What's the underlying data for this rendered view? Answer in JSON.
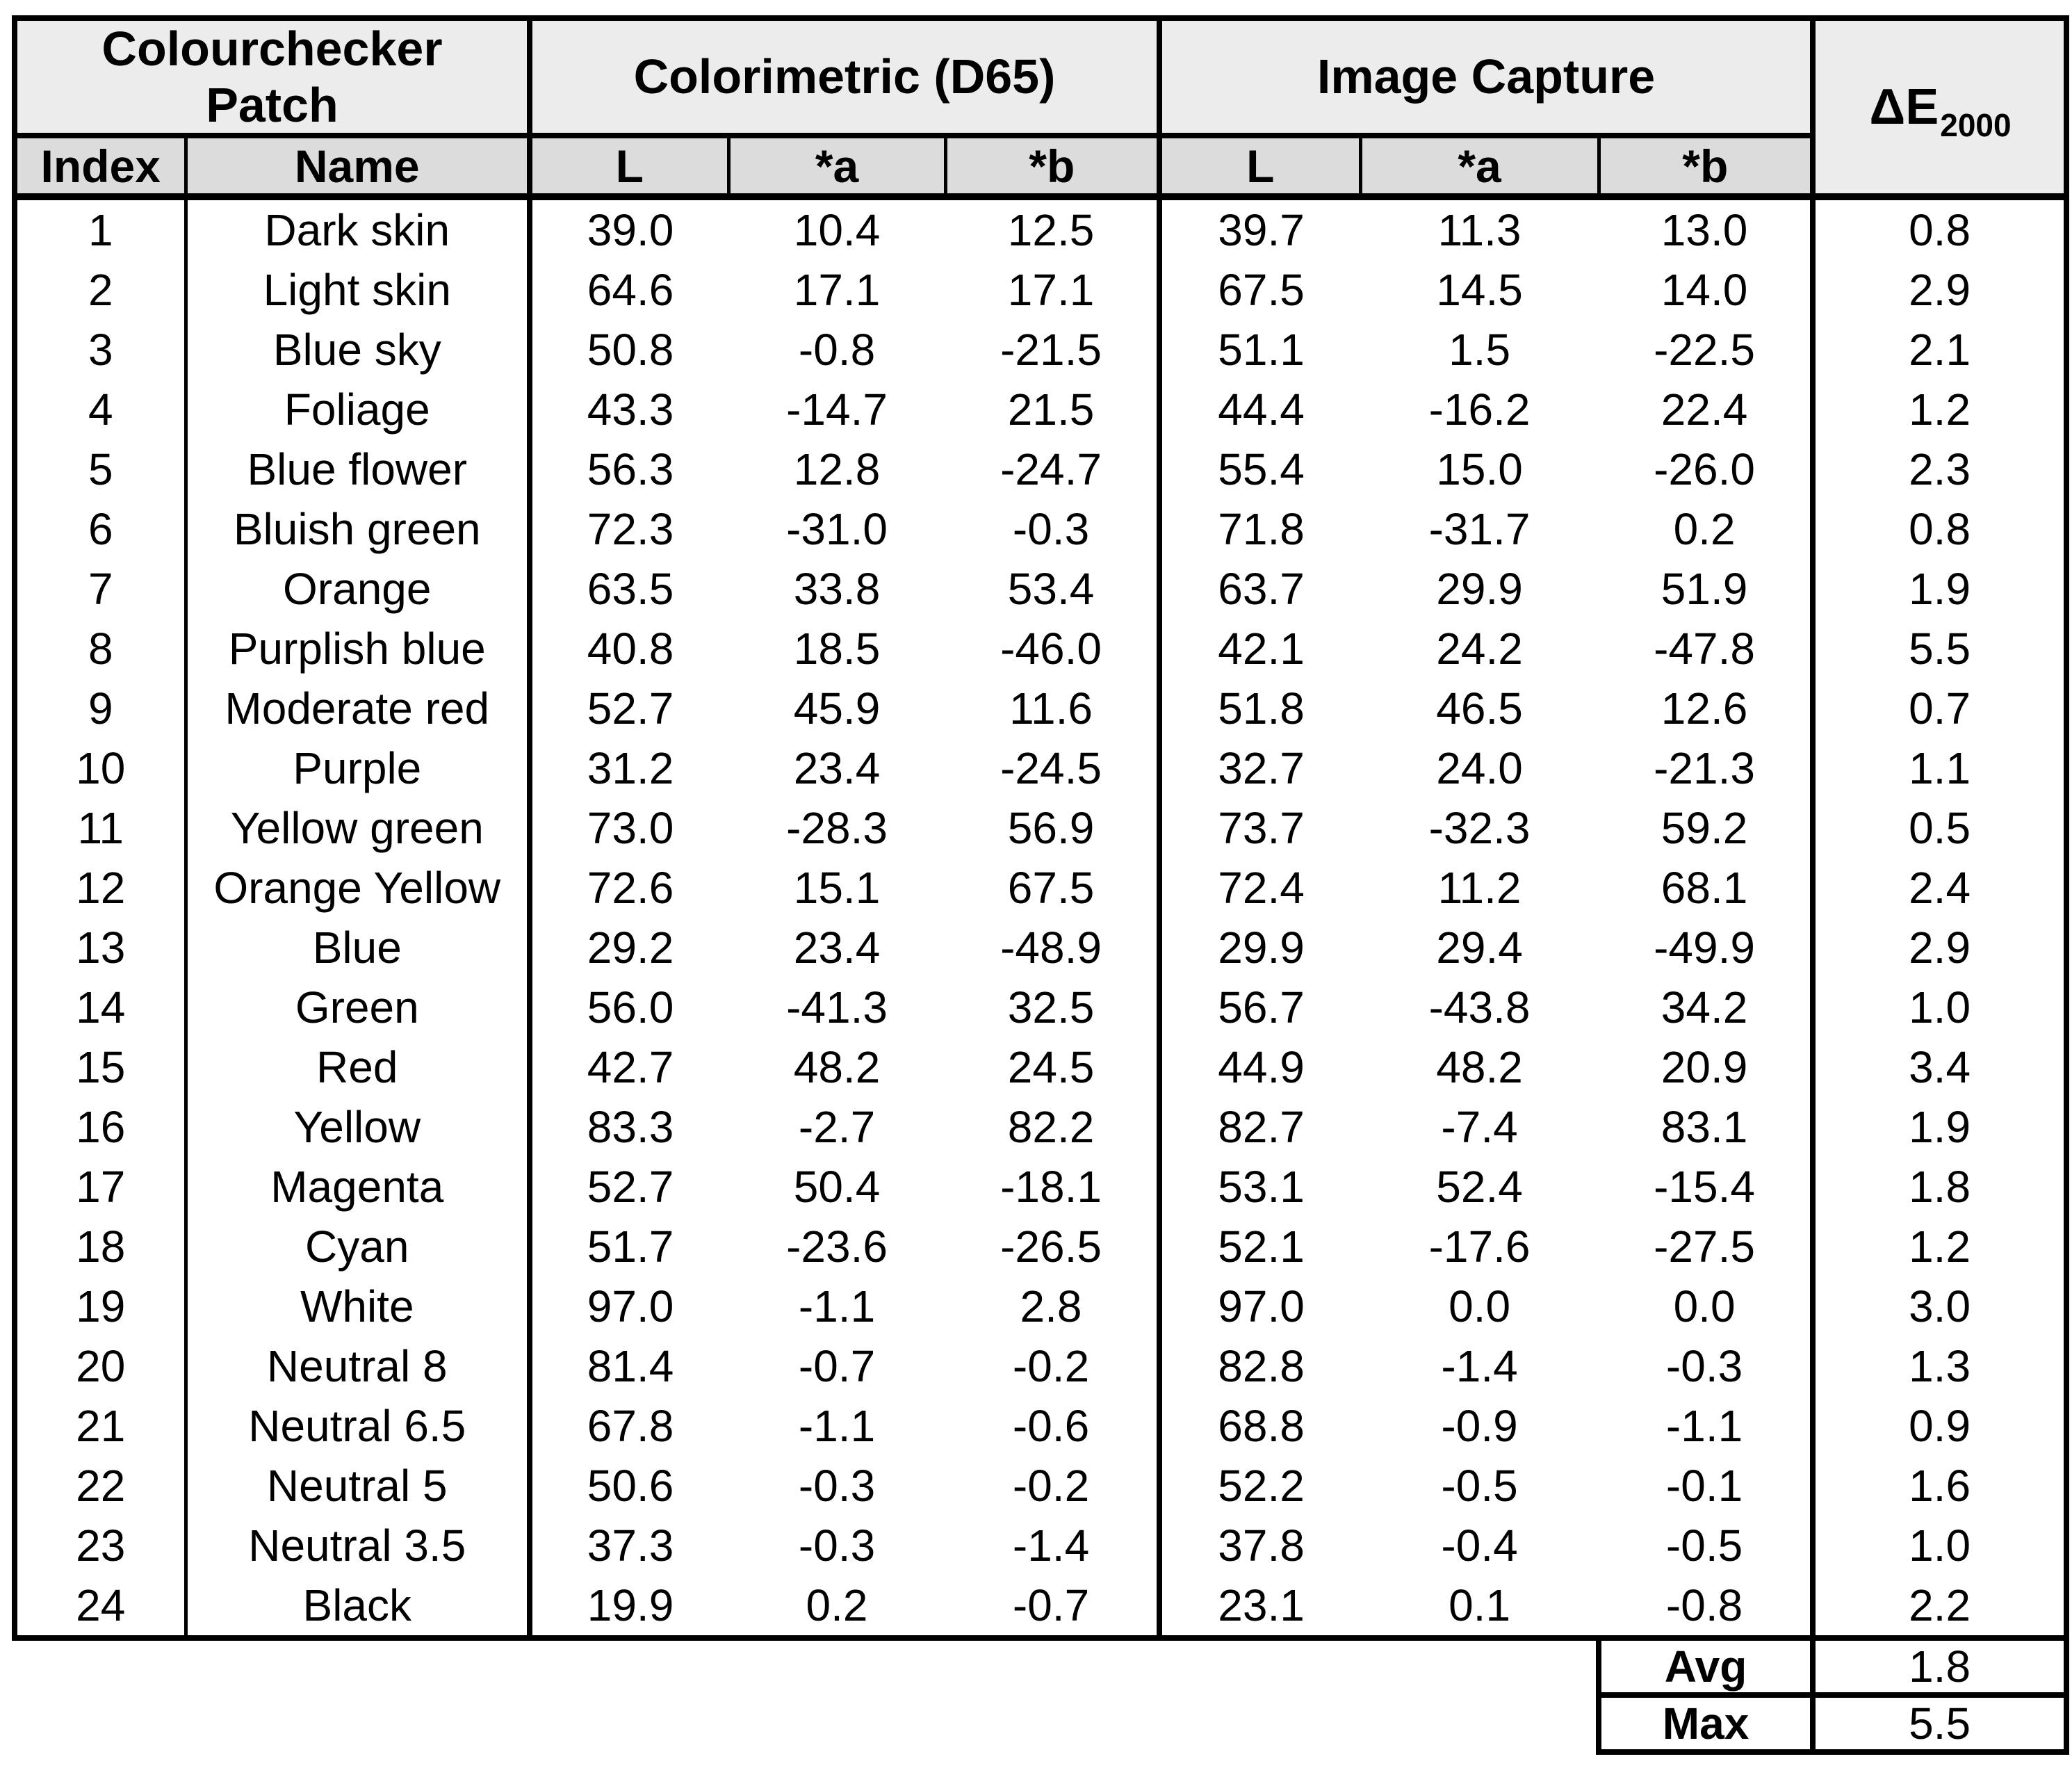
{
  "chart_data": {
    "type": "table",
    "group_headers": {
      "patch_line1": "Colourchecker",
      "patch_line2": "Patch",
      "colorimetric": "Colorimetric (D65)",
      "capture": "Image Capture",
      "delta_e_base": "ΔE",
      "delta_e_sub": "2000"
    },
    "columns": [
      "Index",
      "Name",
      "L",
      "*a",
      "*b",
      "L",
      "*a",
      "*b"
    ],
    "rows": [
      [
        "1",
        "Dark skin",
        "39.0",
        "10.4",
        "12.5",
        "39.7",
        "11.3",
        "13.0",
        "0.8"
      ],
      [
        "2",
        "Light skin",
        "64.6",
        "17.1",
        "17.1",
        "67.5",
        "14.5",
        "14.0",
        "2.9"
      ],
      [
        "3",
        "Blue sky",
        "50.8",
        "-0.8",
        "-21.5",
        "51.1",
        "1.5",
        "-22.5",
        "2.1"
      ],
      [
        "4",
        "Foliage",
        "43.3",
        "-14.7",
        "21.5",
        "44.4",
        "-16.2",
        "22.4",
        "1.2"
      ],
      [
        "5",
        "Blue flower",
        "56.3",
        "12.8",
        "-24.7",
        "55.4",
        "15.0",
        "-26.0",
        "2.3"
      ],
      [
        "6",
        "Bluish green",
        "72.3",
        "-31.0",
        "-0.3",
        "71.8",
        "-31.7",
        "0.2",
        "0.8"
      ],
      [
        "7",
        "Orange",
        "63.5",
        "33.8",
        "53.4",
        "63.7",
        "29.9",
        "51.9",
        "1.9"
      ],
      [
        "8",
        "Purplish blue",
        "40.8",
        "18.5",
        "-46.0",
        "42.1",
        "24.2",
        "-47.8",
        "5.5"
      ],
      [
        "9",
        "Moderate red",
        "52.7",
        "45.9",
        "11.6",
        "51.8",
        "46.5",
        "12.6",
        "0.7"
      ],
      [
        "10",
        "Purple",
        "31.2",
        "23.4",
        "-24.5",
        "32.7",
        "24.0",
        "-21.3",
        "1.1"
      ],
      [
        "11",
        "Yellow green",
        "73.0",
        "-28.3",
        "56.9",
        "73.7",
        "-32.3",
        "59.2",
        "0.5"
      ],
      [
        "12",
        "Orange Yellow",
        "72.6",
        "15.1",
        "67.5",
        "72.4",
        "11.2",
        "68.1",
        "2.4"
      ],
      [
        "13",
        "Blue",
        "29.2",
        "23.4",
        "-48.9",
        "29.9",
        "29.4",
        "-49.9",
        "2.9"
      ],
      [
        "14",
        "Green",
        "56.0",
        "-41.3",
        "32.5",
        "56.7",
        "-43.8",
        "34.2",
        "1.0"
      ],
      [
        "15",
        "Red",
        "42.7",
        "48.2",
        "24.5",
        "44.9",
        "48.2",
        "20.9",
        "3.4"
      ],
      [
        "16",
        "Yellow",
        "83.3",
        "-2.7",
        "82.2",
        "82.7",
        "-7.4",
        "83.1",
        "1.9"
      ],
      [
        "17",
        "Magenta",
        "52.7",
        "50.4",
        "-18.1",
        "53.1",
        "52.4",
        "-15.4",
        "1.8"
      ],
      [
        "18",
        "Cyan",
        "51.7",
        "-23.6",
        "-26.5",
        "52.1",
        "-17.6",
        "-27.5",
        "1.2"
      ],
      [
        "19",
        "White",
        "97.0",
        "-1.1",
        "2.8",
        "97.0",
        "0.0",
        "0.0",
        "3.0"
      ],
      [
        "20",
        "Neutral 8",
        "81.4",
        "-0.7",
        "-0.2",
        "82.8",
        "-1.4",
        "-0.3",
        "1.3"
      ],
      [
        "21",
        "Neutral 6.5",
        "67.8",
        "-1.1",
        "-0.6",
        "68.8",
        "-0.9",
        "-1.1",
        "0.9"
      ],
      [
        "22",
        "Neutral 5",
        "50.6",
        "-0.3",
        "-0.2",
        "52.2",
        "-0.5",
        "-0.1",
        "1.6"
      ],
      [
        "23",
        "Neutral 3.5",
        "37.3",
        "-0.3",
        "-1.4",
        "37.8",
        "-0.4",
        "-0.5",
        "1.0"
      ],
      [
        "24",
        "Black",
        "19.9",
        "0.2",
        "-0.7",
        "23.1",
        "0.1",
        "-0.8",
        "2.2"
      ]
    ],
    "summary": [
      {
        "label": "Avg",
        "value": "1.8"
      },
      {
        "label": "Max",
        "value": "5.5"
      }
    ]
  },
  "colors": {
    "group_header_bg": "#ececec",
    "subheader_bg": "#dcdcdc",
    "body_bg": "#ffffff",
    "border": "#000000",
    "text": "#000000"
  }
}
